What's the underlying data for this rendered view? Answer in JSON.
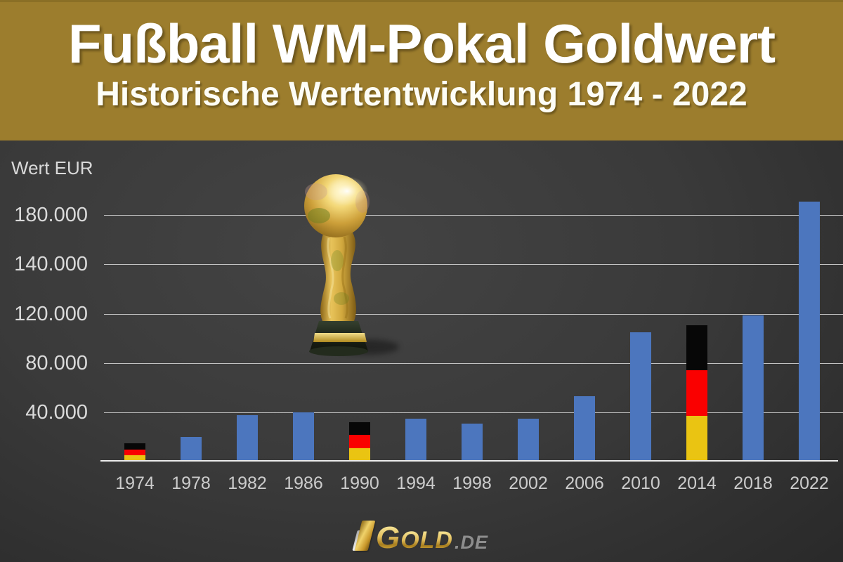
{
  "header": {
    "title": "Fußball WM-Pokal Goldwert",
    "subtitle": "Historische Wertentwicklung 1974 - 2022"
  },
  "chart_data": {
    "type": "bar",
    "title": "Fußball WM-Pokal Goldwert",
    "subtitle": "Historische Wertentwicklung 1974 - 2022",
    "ylabel": "Wert EUR",
    "xlabel": "",
    "unit": "EUR",
    "categories": [
      "1974",
      "1978",
      "1982",
      "1986",
      "1990",
      "1994",
      "1998",
      "2002",
      "2006",
      "2010",
      "2014",
      "2018",
      "2022"
    ],
    "values": [
      14000,
      19500,
      37000,
      39000,
      31500,
      34000,
      30000,
      34000,
      52500,
      104000,
      110000,
      118000,
      190000
    ],
    "germany_flag_years": [
      "1974",
      "1990",
      "2014"
    ],
    "y_axis": {
      "tick_labels": [
        "180.000",
        "140.000",
        "120.000",
        "80.000",
        "40.000"
      ],
      "tick_values": [
        180000,
        140000,
        120000,
        80000,
        40000
      ],
      "note": "gridlines evenly spaced although tick values are non-linear (broken scale)"
    },
    "grid": true,
    "legend": "none"
  },
  "colors": {
    "header_bg": "#9c7d2d",
    "bar_blue": "#4c76be",
    "flag_black": "#070707",
    "flag_red": "#fa0000",
    "flag_gold": "#eac412",
    "gridline": "#c3c3c3",
    "axis_line": "#ececec",
    "y_label_text": "#dadada",
    "x_label_text": "#cccccc",
    "header_text": "#ffffff"
  },
  "logo": {
    "first_letter": "G",
    "rest": "OLD",
    "tld": ".DE"
  },
  "icons": {
    "trophy": "world-cup-trophy-image",
    "logo_bars": "gold-silver-ingot-icon"
  }
}
